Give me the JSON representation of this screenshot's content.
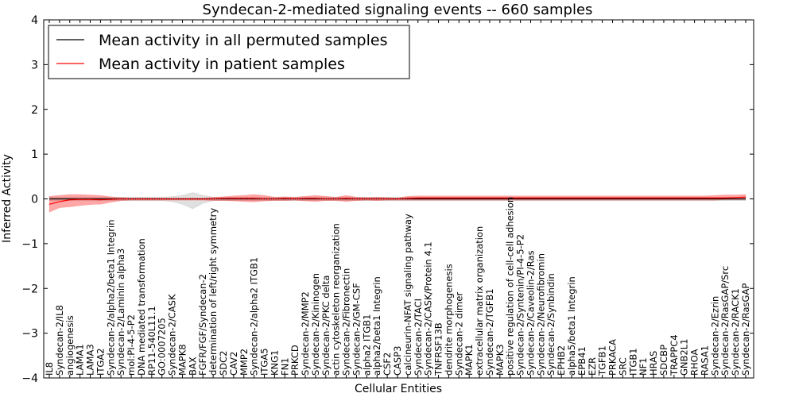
{
  "chart_data": {
    "type": "line",
    "title": "Syndecan-2-mediated signaling events -- 660 samples",
    "xlabel": "Cellular Entities",
    "ylabel": "Inferred Activity",
    "ylim": [
      -4,
      4
    ],
    "yticks": [
      -4,
      -3,
      -2,
      -1,
      0,
      1,
      2,
      3,
      4
    ],
    "yticklabels": [
      "−4",
      "−3",
      "−2",
      "−1",
      "0",
      "1",
      "2",
      "3",
      "4"
    ],
    "legend_position": "top-left",
    "categories": [
      "IL8",
      "Syndecan-2/IL8",
      "angiogenesis",
      "LAMA1",
      "LAMA3",
      "ITGA2",
      "Syndecan-2/alpha2/beta1 Integrin",
      "Syndecan-2/Laminin alpha3",
      "mol:PI-4-5-P2",
      "DNA mediated transformation",
      "RP11-540L11.1",
      "GO:0007205",
      "Syndecan-2/CASK",
      "MAPK8",
      "BAX",
      "FGFR/FGF/Syndecan-2",
      "determination of left/right symmetry",
      "SDC2",
      "CAV2",
      "MMP2",
      "Syndecan-2/alpha2 ITGB1",
      "ITGA5",
      "KNG1",
      "FN1",
      "PRKCD",
      "Syndecan-2/MMP2",
      "Syndecan-2/Kininogen",
      "Syndecan-2/PKC delta",
      "actin cytoskeleton reorganization",
      "Syndecan-2/Fibronectin",
      "Syndecan-2/GM-CSF",
      "alpha2 ITGB1",
      "alpha2/beta1 Integrin",
      "CSF2",
      "CASP3",
      "calcineurin-NFAT signaling pathway",
      "Syndecan-2/TACI",
      "Syndecan-2/CASK/Protein 4.1",
      "TNFRSF13B",
      "dendrite morphogenesis",
      "Syndecan-2 dimer",
      "MAPK1",
      "extracellular matrix organization",
      "Syndecan-2/TGFB1",
      "MAPK3",
      "positive regulation of cell-cell adhesion",
      "Syndecan-2/Syntenin/PI-4-5-P2",
      "Syndecan-2/Caveolin-2/Ras",
      "Syndecan-2/Neurofibromin",
      "Syndecan-2/Synbindin",
      "EPHB2",
      "alpha5/beta1 Integrin",
      "EPB41",
      "EZR",
      "TGFB1",
      "PRKACA",
      "SRC",
      "ITGB1",
      "NF1",
      "HRAS",
      "SDCBP",
      "TRAPPC4",
      "GNB2L1",
      "RHOA",
      "RASA1",
      "Syndecan-2/Ezrin",
      "Syndecan-2/RasGAP/Src",
      "Syndecan-2/RACK1",
      "Syndecan-2/RasGAP"
    ],
    "series": [
      {
        "name": "Mean activity in all permuted samples",
        "color": "#000000",
        "values": [
          0.0,
          0.0,
          0.0,
          0.0,
          0.0,
          0.0,
          0.0,
          0.0,
          0.0,
          0.0,
          0.0,
          0.0,
          0.0,
          0.0,
          0.0,
          0.0,
          0.0,
          0.0,
          0.0,
          0.0,
          0.0,
          0.0,
          0.0,
          0.0,
          0.0,
          0.0,
          0.0,
          0.0,
          0.0,
          0.0,
          0.0,
          0.0,
          0.0,
          0.0,
          0.0,
          0.0,
          0.0,
          0.0,
          0.0,
          0.0,
          0.0,
          0.0,
          0.0,
          0.0,
          0.0,
          0.0,
          0.0,
          0.0,
          0.0,
          0.0,
          0.0,
          0.0,
          0.0,
          0.0,
          0.0,
          0.0,
          0.0,
          0.0,
          0.0,
          0.0,
          0.0,
          0.0,
          0.0,
          0.0,
          0.0,
          0.0,
          0.0,
          0.0,
          0.0
        ],
        "band_upper": [
          0.04,
          0.04,
          0.04,
          0.04,
          0.04,
          0.04,
          0.04,
          0.04,
          0.04,
          0.04,
          0.04,
          0.04,
          0.05,
          0.08,
          0.14,
          0.08,
          0.04,
          0.04,
          0.04,
          0.04,
          0.04,
          0.04,
          0.04,
          0.04,
          0.04,
          0.04,
          0.04,
          0.04,
          0.04,
          0.04,
          0.04,
          0.04,
          0.04,
          0.04,
          0.04,
          0.04,
          0.04,
          0.04,
          0.04,
          0.04,
          0.04,
          0.04,
          0.04,
          0.04,
          0.04,
          0.04,
          0.04,
          0.04,
          0.04,
          0.04,
          0.04,
          0.04,
          0.04,
          0.04,
          0.04,
          0.04,
          0.04,
          0.04,
          0.04,
          0.04,
          0.04,
          0.04,
          0.04,
          0.04,
          0.04,
          0.04,
          0.04,
          0.04,
          0.04
        ],
        "band_lower": [
          -0.04,
          -0.04,
          -0.04,
          -0.04,
          -0.04,
          -0.04,
          -0.04,
          -0.04,
          -0.04,
          -0.04,
          -0.04,
          -0.04,
          -0.06,
          -0.12,
          -0.22,
          -0.1,
          -0.04,
          -0.04,
          -0.04,
          -0.04,
          -0.04,
          -0.04,
          -0.04,
          -0.04,
          -0.04,
          -0.04,
          -0.04,
          -0.04,
          -0.04,
          -0.04,
          -0.04,
          -0.04,
          -0.04,
          -0.04,
          -0.04,
          -0.04,
          -0.04,
          -0.04,
          -0.04,
          -0.04,
          -0.04,
          -0.04,
          -0.04,
          -0.04,
          -0.04,
          -0.04,
          -0.04,
          -0.04,
          -0.04,
          -0.04,
          -0.04,
          -0.04,
          -0.04,
          -0.04,
          -0.04,
          -0.04,
          -0.04,
          -0.04,
          -0.04,
          -0.04,
          -0.04,
          -0.04,
          -0.04,
          -0.04,
          -0.04,
          -0.04,
          -0.04,
          -0.04,
          -0.04
        ]
      },
      {
        "name": "Mean activity in patient samples",
        "color": "#ff0000",
        "values": [
          -0.12,
          -0.06,
          -0.02,
          -0.01,
          -0.01,
          -0.02,
          -0.01,
          0.0,
          0.0,
          0.0,
          0.0,
          0.0,
          0.0,
          0.0,
          0.0,
          0.0,
          0.0,
          0.01,
          0.01,
          0.01,
          0.01,
          0.0,
          0.0,
          0.01,
          0.0,
          0.01,
          0.01,
          0.0,
          0.0,
          0.01,
          0.0,
          0.0,
          0.0,
          0.0,
          0.0,
          0.01,
          0.02,
          0.02,
          0.02,
          0.02,
          0.02,
          0.02,
          0.02,
          0.02,
          0.02,
          0.02,
          0.02,
          0.02,
          0.02,
          0.02,
          0.02,
          0.02,
          0.02,
          0.02,
          0.02,
          0.02,
          0.02,
          0.02,
          0.02,
          0.02,
          0.02,
          0.02,
          0.02,
          0.02,
          0.02,
          0.02,
          0.02,
          0.03,
          0.04
        ],
        "band_upper": [
          0.06,
          0.08,
          0.1,
          0.1,
          0.09,
          0.08,
          0.05,
          0.03,
          0.02,
          0.02,
          0.02,
          0.02,
          0.02,
          0.02,
          0.02,
          0.02,
          0.04,
          0.05,
          0.07,
          0.08,
          0.1,
          0.08,
          0.04,
          0.05,
          0.04,
          0.06,
          0.08,
          0.06,
          0.04,
          0.08,
          0.04,
          0.03,
          0.04,
          0.03,
          0.02,
          0.06,
          0.07,
          0.07,
          0.07,
          0.07,
          0.07,
          0.07,
          0.07,
          0.07,
          0.07,
          0.07,
          0.07,
          0.07,
          0.07,
          0.07,
          0.07,
          0.07,
          0.07,
          0.07,
          0.07,
          0.07,
          0.07,
          0.07,
          0.07,
          0.07,
          0.07,
          0.07,
          0.07,
          0.07,
          0.07,
          0.08,
          0.09,
          0.09,
          0.1
        ],
        "band_lower": [
          -0.3,
          -0.2,
          -0.18,
          -0.15,
          -0.13,
          -0.12,
          -0.08,
          -0.04,
          -0.03,
          -0.03,
          -0.03,
          -0.03,
          -0.03,
          -0.03,
          -0.03,
          -0.03,
          -0.04,
          -0.04,
          -0.05,
          -0.06,
          -0.07,
          -0.05,
          -0.04,
          -0.04,
          -0.03,
          -0.05,
          -0.06,
          -0.04,
          -0.04,
          -0.06,
          -0.04,
          -0.03,
          -0.04,
          -0.03,
          -0.03,
          -0.03,
          -0.03,
          -0.03,
          -0.03,
          -0.03,
          -0.03,
          -0.03,
          -0.03,
          -0.03,
          -0.03,
          -0.03,
          -0.03,
          -0.03,
          -0.03,
          -0.03,
          -0.03,
          -0.03,
          -0.03,
          -0.03,
          -0.03,
          -0.03,
          -0.03,
          -0.03,
          -0.03,
          -0.03,
          -0.03,
          -0.03,
          -0.03,
          -0.03,
          -0.03,
          -0.03,
          -0.02,
          -0.02,
          -0.02
        ]
      }
    ]
  }
}
